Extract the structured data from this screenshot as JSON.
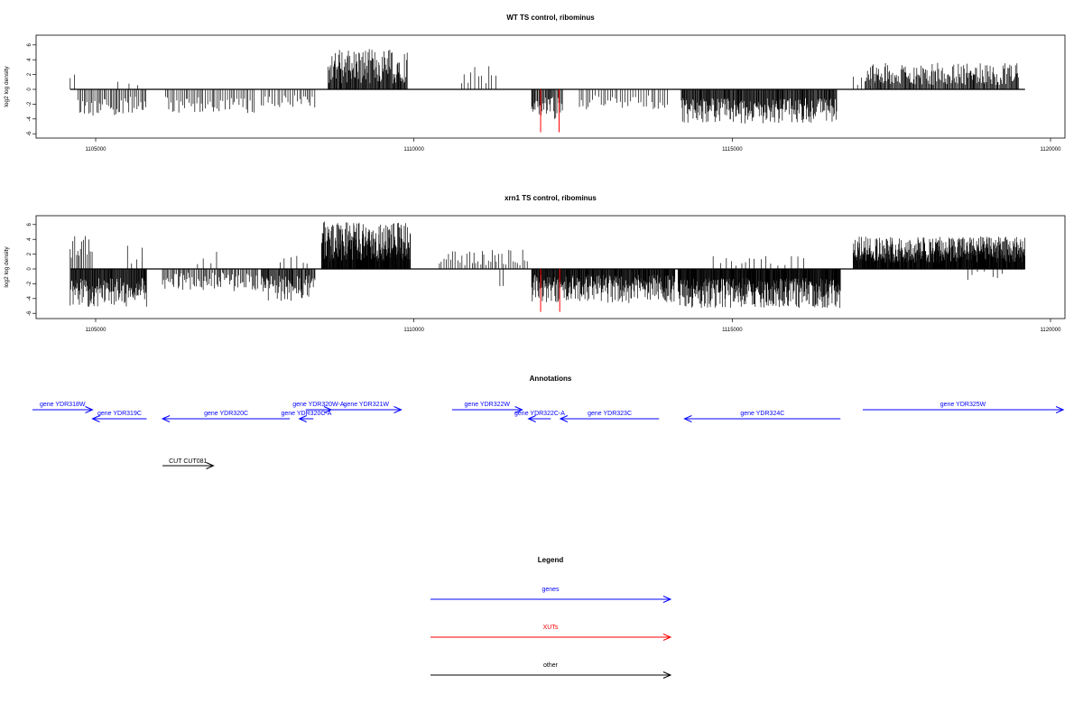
{
  "colors": {
    "gene": "#0000ff",
    "xut": "#ff0000",
    "other": "#000000",
    "axis": "#000000"
  },
  "chart_data": [
    {
      "type": "bar",
      "title": "WT TS control, ribominus",
      "ylabel": "log2 log density",
      "xlim": [
        1104000,
        1120200
      ],
      "ylim": [
        -6,
        7
      ],
      "xticks": [
        "1105000",
        "1110000",
        "1115000",
        "1120000"
      ],
      "xtick_values": [
        1105000,
        1110000,
        1115000,
        1120000
      ],
      "yticks": [
        "6",
        "4",
        "2",
        "0",
        "-2",
        "-4",
        "-6"
      ],
      "ytick_values": [
        6,
        4,
        2,
        0,
        -2,
        -4,
        -6
      ],
      "baseline_x": [
        1104600,
        1119600
      ],
      "regions": [
        {
          "x0": 1104600,
          "x1": 1104720,
          "sign": 1,
          "min": 0.6,
          "max": 2.0,
          "step": 60
        },
        {
          "x0": 1104720,
          "x1": 1105800,
          "sign": -1,
          "min": 1.0,
          "max": 3.6,
          "step": 24
        },
        {
          "x0": 1105350,
          "x1": 1105780,
          "sign": 1,
          "min": 0.4,
          "max": 1.6,
          "step": 140
        },
        {
          "x0": 1106100,
          "x1": 1107500,
          "sign": -1,
          "min": 1.0,
          "max": 3.2,
          "step": 30
        },
        {
          "x0": 1107600,
          "x1": 1108450,
          "sign": -1,
          "min": 0.8,
          "max": 2.8,
          "step": 35
        },
        {
          "x0": 1108650,
          "x1": 1109900,
          "sign": 1,
          "min": 0.8,
          "max": 5.5,
          "step": 10
        },
        {
          "x0": 1110750,
          "x1": 1111300,
          "sign": 1,
          "min": 0.8,
          "max": 3.4,
          "step": 55
        },
        {
          "x0": 1111850,
          "x1": 1112350,
          "sign": -1,
          "min": 1.0,
          "max": 4.0,
          "step": 14
        },
        {
          "x0": 1112600,
          "x1": 1114000,
          "sign": -1,
          "min": 0.6,
          "max": 2.8,
          "step": 40
        },
        {
          "x0": 1114200,
          "x1": 1116650,
          "sign": -1,
          "min": 1.2,
          "max": 4.6,
          "step": 10
        },
        {
          "x0": 1116900,
          "x1": 1117300,
          "sign": 1,
          "min": 0.3,
          "max": 1.8,
          "step": 55
        },
        {
          "x0": 1117100,
          "x1": 1119500,
          "sign": 1,
          "min": 0.6,
          "max": 3.6,
          "step": 13
        }
      ],
      "red_spikes": [
        {
          "x": 1111990,
          "y": -5.8
        },
        {
          "x": 1112280,
          "y": -5.8
        }
      ]
    },
    {
      "type": "bar",
      "title": "xrn1 TS control, ribominus",
      "ylabel": "log2 log density",
      "xlim": [
        1104000,
        1120200
      ],
      "ylim": [
        -6,
        7
      ],
      "xticks": [
        "1105000",
        "1110000",
        "1115000",
        "1120000"
      ],
      "xtick_values": [
        1105000,
        1110000,
        1115000,
        1120000
      ],
      "yticks": [
        "6",
        "4",
        "2",
        "0",
        "-2",
        "-4",
        "-6"
      ],
      "ytick_values": [
        6,
        4,
        2,
        0,
        -2,
        -4,
        -6
      ],
      "baseline_x": [
        1104600,
        1119600
      ],
      "regions": [
        {
          "x0": 1104600,
          "x1": 1104950,
          "sign": 1,
          "min": 0.8,
          "max": 4.5,
          "step": 22
        },
        {
          "x0": 1104600,
          "x1": 1105800,
          "sign": -1,
          "min": 1.2,
          "max": 5.2,
          "step": 9
        },
        {
          "x0": 1105500,
          "x1": 1105750,
          "sign": 1,
          "min": 0.5,
          "max": 3.2,
          "step": 70
        },
        {
          "x0": 1106050,
          "x1": 1107550,
          "sign": -1,
          "min": 0.5,
          "max": 3.0,
          "step": 20
        },
        {
          "x0": 1106600,
          "x1": 1107000,
          "sign": 1,
          "min": 0.4,
          "max": 2.4,
          "step": 120
        },
        {
          "x0": 1107600,
          "x1": 1108450,
          "sign": -1,
          "min": 0.8,
          "max": 4.5,
          "step": 12
        },
        {
          "x0": 1107900,
          "x1": 1108400,
          "sign": 1,
          "min": 0.4,
          "max": 2.2,
          "step": 80
        },
        {
          "x0": 1108550,
          "x1": 1109950,
          "sign": 1,
          "min": 1.0,
          "max": 6.4,
          "step": 6
        },
        {
          "x0": 1110400,
          "x1": 1111800,
          "sign": 1,
          "min": 0.5,
          "max": 2.6,
          "step": 35
        },
        {
          "x0": 1111350,
          "x1": 1111450,
          "sign": -1,
          "min": 2.0,
          "max": 2.6,
          "step": 60
        },
        {
          "x0": 1111850,
          "x1": 1114100,
          "sign": -1,
          "min": 0.8,
          "max": 4.6,
          "step": 8
        },
        {
          "x0": 1114150,
          "x1": 1116700,
          "sign": -1,
          "min": 1.2,
          "max": 5.3,
          "step": 7
        },
        {
          "x0": 1114700,
          "x1": 1116200,
          "sign": 1,
          "min": 0.4,
          "max": 1.8,
          "step": 90
        },
        {
          "x0": 1116900,
          "x1": 1119600,
          "sign": 1,
          "min": 0.8,
          "max": 4.4,
          "step": 6
        },
        {
          "x0": 1118700,
          "x1": 1119300,
          "sign": -1,
          "min": 0.3,
          "max": 1.6,
          "step": 110
        }
      ],
      "red_spikes": [
        {
          "x": 1111990,
          "y": -5.8
        },
        {
          "x": 1112290,
          "y": -5.8
        }
      ]
    }
  ],
  "annotations": {
    "title": "Annotations",
    "genes": [
      {
        "label": "gene YDR318W",
        "x_start": 1103900,
        "x_end": 1104950,
        "dir": "right",
        "row": 0
      },
      {
        "label": "gene YDR319C",
        "x_start": 1104950,
        "x_end": 1105800,
        "dir": "left",
        "row": 1
      },
      {
        "label": "gene YDR320C",
        "x_start": 1106050,
        "x_end": 1108050,
        "dir": "left",
        "row": 1
      },
      {
        "label": "gene YDR320W-A",
        "x_start": 1108300,
        "x_end": 1108700,
        "dir": "right",
        "row": 0
      },
      {
        "label": "gene YDR320C-A",
        "x_start": 1108200,
        "x_end": 1108420,
        "dir": "left",
        "row": 1
      },
      {
        "label": "gene YDR321W",
        "x_start": 1108700,
        "x_end": 1109800,
        "dir": "right",
        "row": 0
      },
      {
        "label": "gene YDR322W",
        "x_start": 1110600,
        "x_end": 1111700,
        "dir": "right",
        "row": 0
      },
      {
        "label": "gene YDR322C-A",
        "x_start": 1111800,
        "x_end": 1112150,
        "dir": "left",
        "row": 1
      },
      {
        "label": "gene YDR323C",
        "x_start": 1112300,
        "x_end": 1113850,
        "dir": "left",
        "row": 1
      },
      {
        "label": "gene YDR324C",
        "x_start": 1114250,
        "x_end": 1116700,
        "dir": "left",
        "row": 1
      },
      {
        "label": "gene YDR325W",
        "x_start": 1117050,
        "x_end": 1120200,
        "dir": "right",
        "row": 0
      }
    ],
    "other": [
      {
        "label": "CUT CUT081",
        "x_start": 1106050,
        "x_end": 1106850,
        "dir": "right"
      }
    ]
  },
  "legend": {
    "title": "Legend",
    "items": [
      {
        "label": "genes",
        "color_key": "gene"
      },
      {
        "label": "XUTs",
        "color_key": "xut"
      },
      {
        "label": "other",
        "color_key": "other"
      }
    ]
  }
}
